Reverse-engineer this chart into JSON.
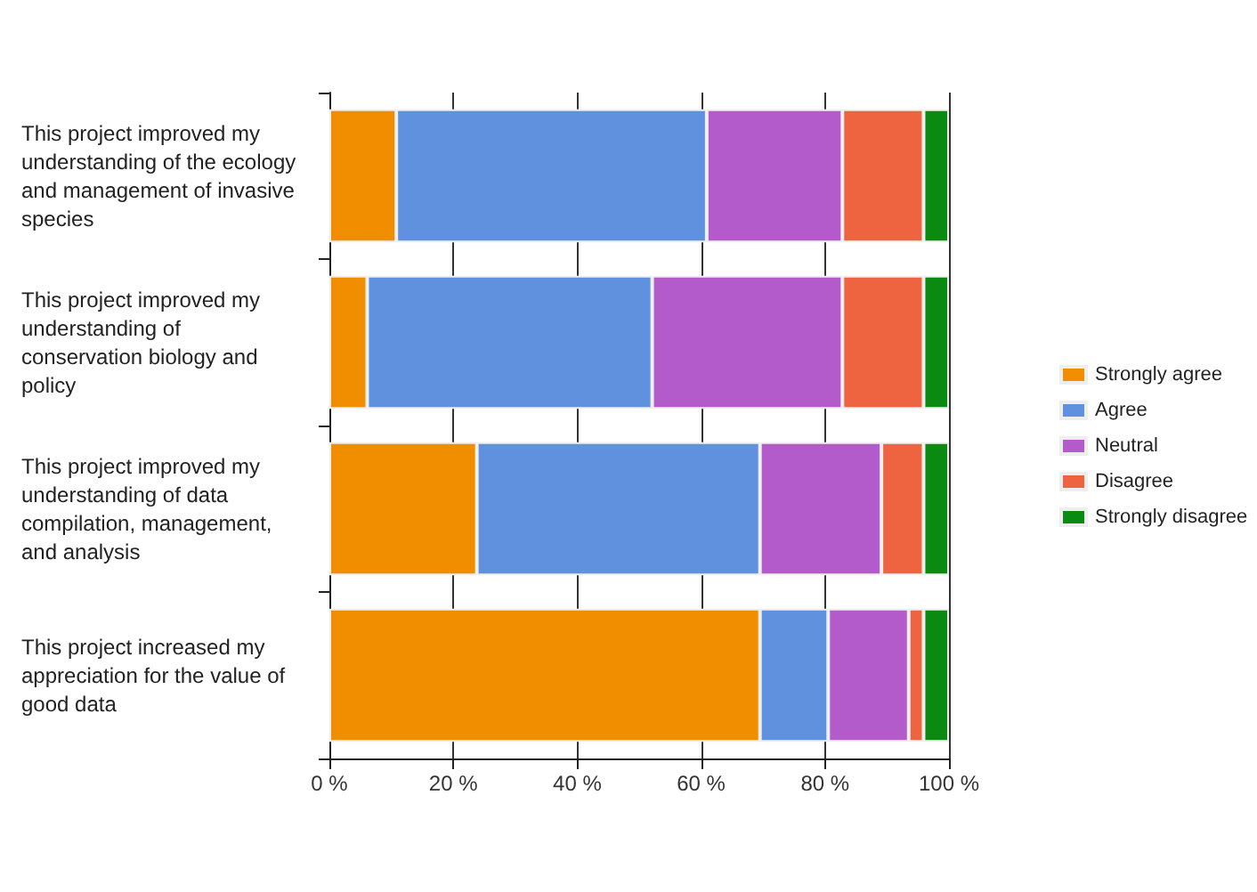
{
  "chart_data": {
    "type": "bar",
    "orientation": "horizontal",
    "stacked": true,
    "categories": [
      "This project improved my understanding of the ecology and management of invasive species",
      "This project improved my understanding of conservation biology and policy",
      "This project improved my understanding of data compilation, management, and analysis",
      "This project increased my appreciation for the value of good data"
    ],
    "series": [
      {
        "name": "Strongly agree",
        "color": "#f18e00",
        "values": [
          10.8,
          6.1,
          23.8,
          69.5
        ]
      },
      {
        "name": "Agree",
        "color": "#5f91de",
        "values": [
          50.1,
          46.0,
          45.7,
          11.0
        ]
      },
      {
        "name": "Neutral",
        "color": "#b45bcb",
        "values": [
          21.9,
          30.7,
          19.6,
          13.0
        ]
      },
      {
        "name": "Disagree",
        "color": "#ee6440",
        "values": [
          13.1,
          13.1,
          6.8,
          2.4
        ]
      },
      {
        "name": "Strongly disagree",
        "color": "#0b8a12",
        "values": [
          4.1,
          4.1,
          4.1,
          4.1
        ]
      }
    ],
    "xlim": [
      0,
      100
    ],
    "xticks": [
      {
        "value": 0,
        "label": "0 %"
      },
      {
        "value": 20,
        "label": "20 %"
      },
      {
        "value": 40,
        "label": "40 %"
      },
      {
        "value": 60,
        "label": "60 %"
      },
      {
        "value": 80,
        "label": "80 %"
      },
      {
        "value": 100,
        "label": "100 %"
      }
    ],
    "grid": "x",
    "legend": "right"
  }
}
